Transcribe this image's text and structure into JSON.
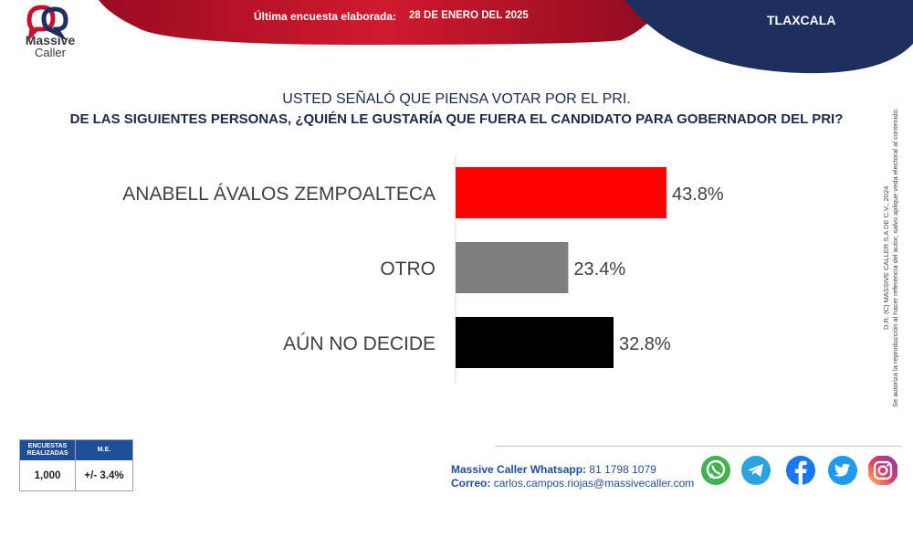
{
  "header": {
    "brand_line1": "Massive",
    "brand_line2": "Caller",
    "survey_label": "Última encuesta elaborada:",
    "survey_date": "28 DE ENERO DEL 2025",
    "state": "TLAXCALA"
  },
  "question": {
    "line1": "USTED SEÑALÓ QUE PIENSA VOTAR POR EL PRI.",
    "line2": "DE LAS SIGUIENTES PERSONAS, ¿QUIÉN LE GUSTARÍA QUE FUERA EL CANDIDATO PARA GOBERNADOR DEL PRI?"
  },
  "chart_data": {
    "type": "bar",
    "orientation": "horizontal",
    "categories": [
      "ANABELL ÁVALOS ZEMPOALTECA",
      "OTRO",
      "AÚN NO DECIDE"
    ],
    "values": [
      43.8,
      23.4,
      32.8
    ],
    "value_labels": [
      "43.8%",
      "23.4%",
      "32.8%"
    ],
    "colors": [
      "#ff0000",
      "#7f7f7f",
      "#000000"
    ],
    "xlim": [
      0,
      100
    ],
    "grid": false,
    "legend": "none"
  },
  "side_text": {
    "line1": "D.R. (C) MASSIVE CALLER S.A DE C.V., 2024",
    "line2": "Se autoriza la reproducción al hacer referencia del autor, salvo aplique veda electoral al contenido."
  },
  "stats": {
    "col1_header": "ENCUESTAS REALIZADAS",
    "col2_header": "M.E.",
    "col1_value": "1,000",
    "col2_value": "+/- 3.4%"
  },
  "contact": {
    "whatsapp_label": "Massive Caller Whatsapp:",
    "whatsapp_value": "81 1798 1079",
    "email_label": "Correo:",
    "email_value": "carlos.campos.riojas@massivecaller.com"
  },
  "social_icons": [
    "whatsapp-icon",
    "telegram-icon",
    "facebook-icon",
    "twitter-icon",
    "instagram-icon"
  ],
  "colors": {
    "header_red": "#c8102e",
    "header_navy": "#1c2f5e",
    "brand_blue": "#1f4e96"
  }
}
